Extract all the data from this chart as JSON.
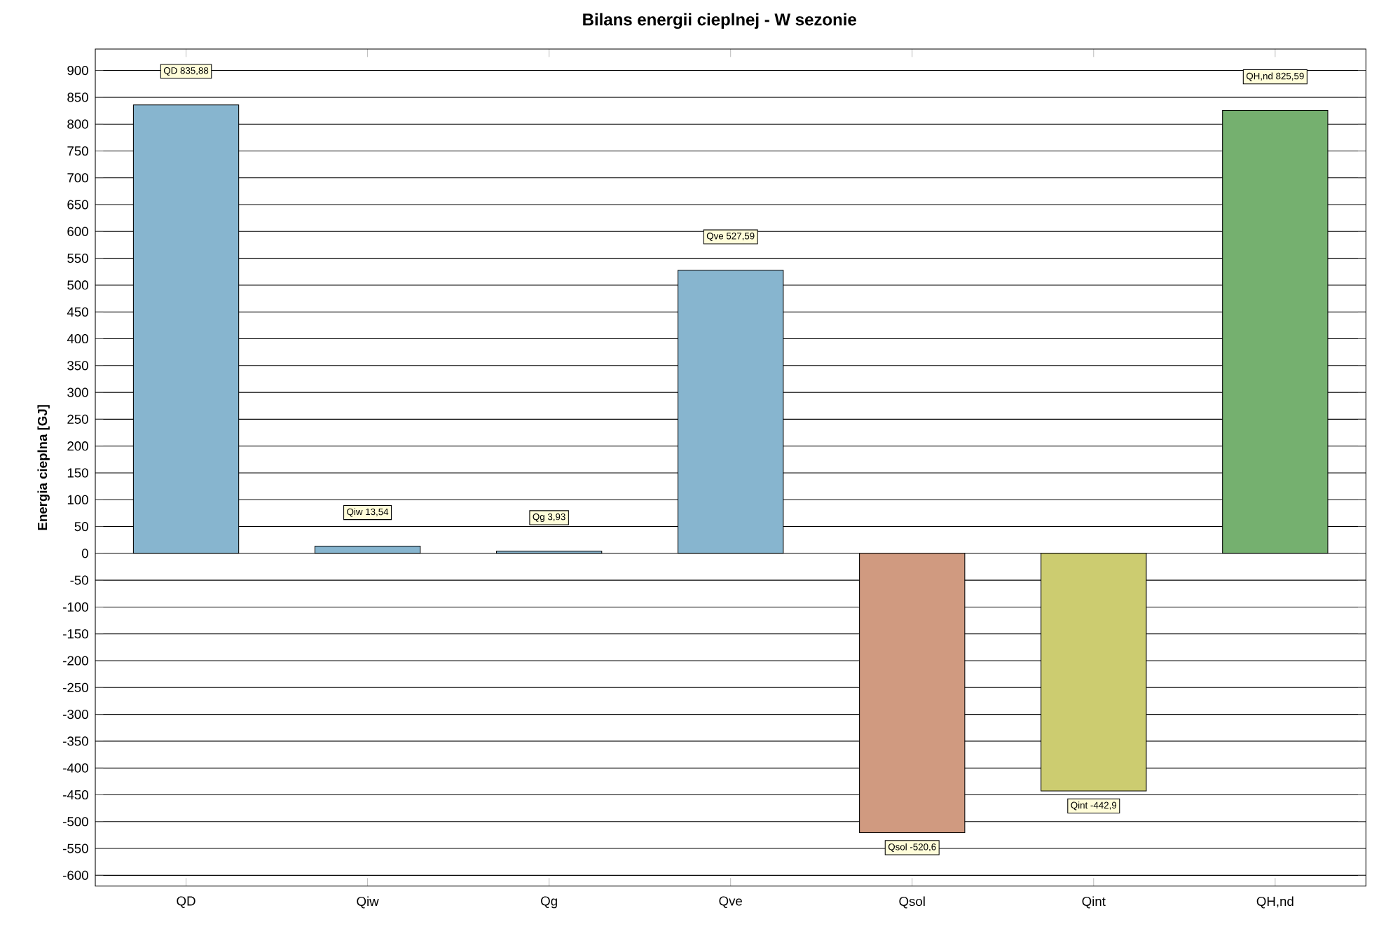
{
  "chart_data": {
    "type": "bar",
    "title": "Bilans energii cieplnej - W sezonie",
    "ylabel": "Energia cieplna [GJ]",
    "categories": [
      "QD",
      "Qiw",
      "Qg",
      "Qve",
      "Qsol",
      "Qint",
      "QH,nd"
    ],
    "values": [
      835.88,
      13.54,
      3.93,
      527.59,
      -520.6,
      -442.9,
      825.59
    ],
    "value_labels": [
      "QD 835,88",
      "Qiw 13,54",
      "Qg 3,93",
      "Qve 527,59",
      "Qsol -520,6",
      "Qint -442,9",
      "QH,nd 825,59"
    ],
    "colors": [
      "#87b5cf",
      "#87b5cf",
      "#87b5cf",
      "#87b5cf",
      "#d09a80",
      "#cccc70",
      "#75b06f"
    ],
    "ylim": [
      -620,
      940
    ],
    "yticks": [
      -600,
      -550,
      -500,
      -450,
      -400,
      -350,
      -300,
      -250,
      -200,
      -150,
      -100,
      -50,
      0,
      50,
      100,
      150,
      200,
      250,
      300,
      350,
      400,
      450,
      500,
      550,
      600,
      650,
      700,
      750,
      800,
      850,
      900
    ],
    "grid": "y"
  }
}
